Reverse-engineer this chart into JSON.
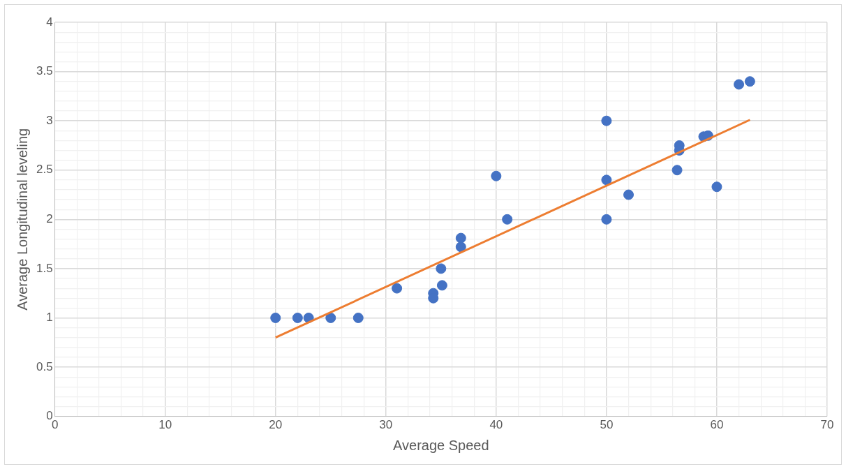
{
  "chart_data": {
    "type": "scatter",
    "xlabel": "Average Speed",
    "ylabel": "Average Longitudinal leveling",
    "series": [
      {
        "color": "#4472c4",
        "x": [
          20,
          22,
          23,
          25,
          27.5,
          31,
          34.3,
          34.3,
          35,
          35.1,
          36.8,
          36.8,
          40,
          41,
          50,
          50,
          50,
          52,
          56.4,
          56.6,
          56.6,
          58.8,
          59.2,
          60,
          62,
          63
        ],
        "values": [
          1,
          1,
          1,
          1,
          1,
          1.3,
          1.25,
          1.2,
          1.5,
          1.33,
          1.72,
          1.81,
          2.44,
          2,
          3,
          2.4,
          2,
          2.25,
          2.5,
          2.75,
          2.7,
          2.84,
          2.85,
          2.33,
          3.37,
          3.4
        ]
      },
      {
        "type": "line",
        "marker": "none",
        "color": "#ed7d31",
        "x": [
          20,
          63
        ],
        "values": [
          0.8,
          3.01
        ]
      }
    ],
    "marker": "circle",
    "grid": true,
    "legend": false,
    "xlim": [
      0,
      70
    ],
    "ylim": [
      0,
      4
    ],
    "xticks": [
      0,
      {
        "value": 2,
        "label": null
      },
      {
        "value": 4,
        "label": null
      },
      {
        "value": 6,
        "label": null
      },
      {
        "value": 8,
        "label": null
      },
      10,
      {
        "value": 12,
        "label": null
      },
      {
        "value": 14,
        "label": null
      },
      {
        "value": 16,
        "label": null
      },
      {
        "value": 18,
        "label": null
      },
      20,
      {
        "value": 22,
        "label": null
      },
      {
        "value": 24,
        "label": null
      },
      {
        "value": 26,
        "label": null
      },
      {
        "value": 28,
        "label": null
      },
      30,
      {
        "value": 32,
        "label": null
      },
      {
        "value": 34,
        "label": null
      },
      {
        "value": 36,
        "label": null
      },
      {
        "value": 38,
        "label": null
      },
      40,
      {
        "value": 42,
        "label": null
      },
      {
        "value": 44,
        "label": null
      },
      {
        "value": 46,
        "label": null
      },
      {
        "value": 48,
        "label": null
      },
      50,
      {
        "value": 52,
        "label": null
      },
      {
        "value": 54,
        "label": null
      },
      {
        "value": 56,
        "label": null
      },
      {
        "value": 58,
        "label": null
      },
      60,
      {
        "value": 62,
        "label": null
      },
      {
        "value": 64,
        "label": null
      },
      {
        "value": 66,
        "label": null
      },
      {
        "value": 68,
        "label": null
      },
      70
    ],
    "yticks": [
      0,
      {
        "value": 0.1,
        "label": null
      },
      {
        "value": 0.2,
        "label": null
      },
      {
        "value": 0.3,
        "label": null
      },
      {
        "value": 0.4,
        "label": null
      },
      0.5,
      {
        "value": 0.6,
        "label": null
      },
      {
        "value": 0.7,
        "label": null
      },
      {
        "value": 0.8,
        "label": null
      },
      {
        "value": 0.9,
        "label": null
      },
      1,
      {
        "value": 1.1,
        "label": null
      },
      {
        "value": 1.2,
        "label": null
      },
      {
        "value": 1.3,
        "label": null
      },
      {
        "value": 1.4,
        "label": null
      },
      1.5,
      {
        "value": 1.6,
        "label": null
      },
      {
        "value": 1.7,
        "label": null
      },
      {
        "value": 1.8,
        "label": null
      },
      {
        "value": 1.9,
        "label": null
      },
      2,
      {
        "value": 2.1,
        "label": null
      },
      {
        "value": 2.2,
        "label": null
      },
      {
        "value": 2.3,
        "label": null
      },
      {
        "value": 2.4,
        "label": null
      },
      2.5,
      {
        "value": 2.6,
        "label": null
      },
      {
        "value": 2.7,
        "label": null
      },
      {
        "value": 2.8,
        "label": null
      },
      {
        "value": 2.9,
        "label": null
      },
      3,
      {
        "value": 3.1,
        "label": null
      },
      {
        "value": 3.2,
        "label": null
      },
      {
        "value": 3.3,
        "label": null
      },
      {
        "value": 3.4,
        "label": null
      },
      3.5,
      {
        "value": 3.6,
        "label": null
      },
      {
        "value": 3.7,
        "label": null
      },
      {
        "value": 3.8,
        "label": null
      },
      {
        "value": 3.9,
        "label": null
      },
      4
    ]
  }
}
